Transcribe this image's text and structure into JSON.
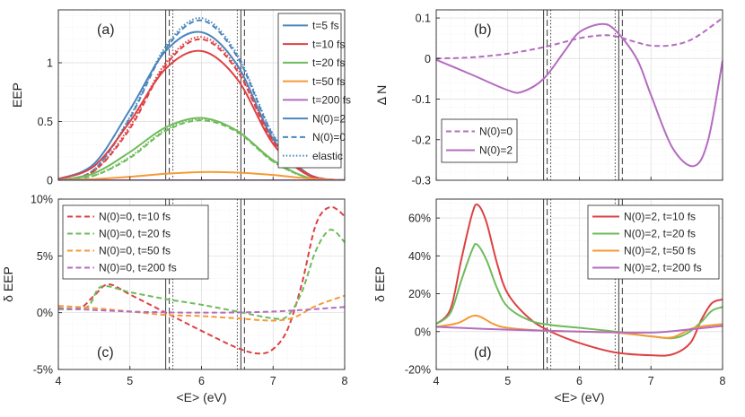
{
  "chart_data": [
    {
      "panel": "(a)",
      "type": "line",
      "xlabel": "",
      "ylabel": "EEP",
      "xlim": [
        4,
        8
      ],
      "ylim": [
        0,
        1.45
      ],
      "xticks": [
        4,
        5,
        6,
        7,
        8
      ],
      "xtick_labels": [
        "",
        "",
        "",
        "",
        ""
      ],
      "yticks": [
        0,
        0.5,
        1
      ],
      "ytick_labels": [
        "0",
        "0.5",
        "1"
      ],
      "legend": [
        "t=5 fs",
        "t=10 fs",
        "t=20 fs",
        "t=50 fs",
        "t=200 fs",
        "N(0)=2",
        "N(0)=0",
        "elastic"
      ],
      "legend_styles": [
        {
          "color": "#4a86bd",
          "dash": "solid"
        },
        {
          "color": "#de4144",
          "dash": "solid"
        },
        {
          "color": "#6ebb5b",
          "dash": "solid"
        },
        {
          "color": "#f59a36",
          "dash": "solid"
        },
        {
          "color": "#b46cc0",
          "dash": "solid"
        },
        {
          "color": "#4a86bd",
          "dash": "solid"
        },
        {
          "color": "#4a86bd",
          "dash": "dashed"
        },
        {
          "color": "#4a86bd",
          "dash": "dotted"
        }
      ],
      "series": [
        {
          "name": "t=5 fs, N(0)=2",
          "color": "#4a86bd",
          "dash": "solid",
          "x": [
            4,
            4.5,
            5,
            5.5,
            6,
            6.5,
            7,
            7.5,
            8
          ],
          "y": [
            0.01,
            0.14,
            0.6,
            1.1,
            1.26,
            0.98,
            0.35,
            0.05,
            0.0
          ]
        },
        {
          "name": "t=5 fs, N(0)=0",
          "color": "#4a86bd",
          "dash": "dashed",
          "x": [
            4,
            4.5,
            5,
            5.5,
            6,
            6.5,
            7,
            7.5,
            8
          ],
          "y": [
            0.0,
            0.09,
            0.53,
            1.12,
            1.36,
            1.05,
            0.38,
            0.05,
            0.0
          ]
        },
        {
          "name": "t=5 fs, elastic",
          "color": "#4a86bd",
          "dash": "dotted",
          "x": [
            4,
            4.5,
            5,
            5.5,
            6,
            6.5,
            7,
            7.5,
            8
          ],
          "y": [
            0.0,
            0.09,
            0.54,
            1.14,
            1.38,
            1.07,
            0.39,
            0.05,
            0.0
          ]
        },
        {
          "name": "t=10 fs, N(0)=2",
          "color": "#de4144",
          "dash": "solid",
          "x": [
            4,
            4.5,
            5,
            5.5,
            6,
            6.5,
            7,
            7.5,
            8
          ],
          "y": [
            0.01,
            0.12,
            0.5,
            0.95,
            1.1,
            0.86,
            0.31,
            0.04,
            0.0
          ]
        },
        {
          "name": "t=10 fs, N(0)=0",
          "color": "#de4144",
          "dash": "dashed",
          "x": [
            4,
            4.5,
            5,
            5.5,
            6,
            6.5,
            7,
            7.5,
            8
          ],
          "y": [
            0.0,
            0.08,
            0.44,
            0.98,
            1.2,
            0.93,
            0.33,
            0.05,
            0.0
          ]
        },
        {
          "name": "t=10 fs, elastic",
          "color": "#de4144",
          "dash": "dotted",
          "x": [
            4,
            4.5,
            5,
            5.5,
            6,
            6.5,
            7,
            7.5,
            8
          ],
          "y": [
            0.0,
            0.08,
            0.46,
            1.0,
            1.22,
            0.95,
            0.34,
            0.05,
            0.0
          ]
        },
        {
          "name": "t=20 fs, N(0)=2",
          "color": "#6ebb5b",
          "dash": "solid",
          "x": [
            4,
            4.5,
            5,
            5.5,
            6,
            6.5,
            7,
            7.5,
            8
          ],
          "y": [
            0.0,
            0.06,
            0.24,
            0.45,
            0.53,
            0.42,
            0.17,
            0.02,
            0.0
          ]
        },
        {
          "name": "t=20 fs, N(0)=0",
          "color": "#6ebb5b",
          "dash": "dashed",
          "x": [
            4,
            4.5,
            5,
            5.5,
            6,
            6.5,
            7,
            7.5,
            8
          ],
          "y": [
            0.0,
            0.04,
            0.19,
            0.42,
            0.51,
            0.41,
            0.16,
            0.02,
            0.0
          ]
        },
        {
          "name": "t=20 fs, elastic",
          "color": "#6ebb5b",
          "dash": "dotted",
          "x": [
            4,
            4.5,
            5,
            5.5,
            6,
            6.5,
            7,
            7.5,
            8
          ],
          "y": [
            0.0,
            0.04,
            0.2,
            0.43,
            0.52,
            0.42,
            0.16,
            0.02,
            0.0
          ]
        },
        {
          "name": "t=50 fs",
          "color": "#f59a36",
          "dash": "solid",
          "x": [
            4,
            4.5,
            5,
            5.5,
            6,
            6.5,
            7,
            7.5,
            8
          ],
          "y": [
            0.0,
            0.01,
            0.03,
            0.055,
            0.07,
            0.065,
            0.045,
            0.015,
            0.0
          ]
        },
        {
          "name": "t=200 fs",
          "color": "#b46cc0",
          "dash": "solid",
          "x": [
            4,
            5,
            6,
            7,
            8
          ],
          "y": [
            0.0,
            0.0,
            0.0,
            0.0,
            0.0
          ]
        }
      ],
      "vlines": [
        {
          "x": 5.5,
          "dash": "solid"
        },
        {
          "x": 5.55,
          "dash": "dashed"
        },
        {
          "x": 5.6,
          "dash": "dotted"
        },
        {
          "x": 6.5,
          "dash": "dotted"
        },
        {
          "x": 6.55,
          "dash": "solid"
        },
        {
          "x": 6.6,
          "dash": "dashed"
        }
      ]
    },
    {
      "panel": "(b)",
      "type": "line",
      "xlabel": "",
      "ylabel": "Δ N",
      "xlim": [
        4,
        8
      ],
      "ylim": [
        -0.3,
        0.12
      ],
      "xticks": [
        4,
        5,
        6,
        7,
        8
      ],
      "xtick_labels": [
        "",
        "",
        "",
        "",
        ""
      ],
      "yticks": [
        -0.3,
        -0.2,
        -0.1,
        0,
        0.1
      ],
      "ytick_labels": [
        "-0.3",
        "-0.2",
        "-0.1",
        "0",
        "0.1"
      ],
      "legend": [
        "N(0)=0",
        "N(0)=2"
      ],
      "legend_styles": [
        {
          "color": "#b46cc0",
          "dash": "dashed"
        },
        {
          "color": "#b46cc0",
          "dash": "solid"
        }
      ],
      "series": [
        {
          "name": "N(0)=0",
          "color": "#b46cc0",
          "dash": "dashed",
          "x": [
            4,
            4.5,
            5,
            5.5,
            6,
            6.3,
            6.5,
            6.8,
            7,
            7.3,
            7.6,
            8
          ],
          "y": [
            0.0,
            0.003,
            0.012,
            0.028,
            0.05,
            0.057,
            0.055,
            0.04,
            0.032,
            0.033,
            0.05,
            0.1
          ]
        },
        {
          "name": "N(0)=2",
          "color": "#b46cc0",
          "dash": "solid",
          "x": [
            4,
            4.5,
            5,
            5.2,
            5.5,
            5.8,
            6,
            6.3,
            6.5,
            6.8,
            7,
            7.3,
            7.6,
            7.8,
            8
          ],
          "y": [
            -0.003,
            -0.04,
            -0.078,
            -0.082,
            -0.05,
            0.02,
            0.065,
            0.085,
            0.07,
            0.0,
            -0.09,
            -0.22,
            -0.265,
            -0.2,
            -0.005
          ]
        }
      ],
      "vlines": [
        {
          "x": 5.5,
          "dash": "solid"
        },
        {
          "x": 5.55,
          "dash": "dashed"
        },
        {
          "x": 5.6,
          "dash": "dotted"
        },
        {
          "x": 6.5,
          "dash": "dotted"
        },
        {
          "x": 6.55,
          "dash": "solid"
        },
        {
          "x": 6.6,
          "dash": "dashed"
        }
      ]
    },
    {
      "panel": "(c)",
      "type": "line",
      "xlabel": "<E> (eV)",
      "ylabel": "δ EEP",
      "xlim": [
        4,
        8
      ],
      "ylim": [
        -5,
        10
      ],
      "xticks": [
        4,
        5,
        6,
        7,
        8
      ],
      "xtick_labels": [
        "4",
        "5",
        "6",
        "7",
        "8"
      ],
      "yticks": [
        -5,
        0,
        5,
        10
      ],
      "ytick_labels": [
        "-5%",
        "0%",
        "5%",
        "10%"
      ],
      "legend": [
        "N(0)=0, t=10 fs",
        "N(0)=0, t=20 fs",
        "N(0)=0, t=50 fs",
        "N(0)=0, t=200 fs"
      ],
      "legend_styles": [
        {
          "color": "#de4144",
          "dash": "dashed"
        },
        {
          "color": "#6ebb5b",
          "dash": "dashed"
        },
        {
          "color": "#f59a36",
          "dash": "dashed"
        },
        {
          "color": "#b46cc0",
          "dash": "dashed"
        }
      ],
      "series": [
        {
          "name": "N(0)=0, t=10 fs",
          "color": "#de4144",
          "dash": "dashed",
          "x": [
            4,
            4.3,
            4.5,
            4.7,
            5,
            5.5,
            6,
            6.5,
            6.8,
            7,
            7.2,
            7.4,
            7.6,
            7.8,
            8
          ],
          "y": [
            0.4,
            0.4,
            1.5,
            2.5,
            1.6,
            0.0,
            -1.6,
            -3.1,
            -3.6,
            -3.2,
            -1.5,
            2.5,
            7.8,
            9.3,
            8.5
          ]
        },
        {
          "name": "N(0)=0, t=20 fs",
          "color": "#6ebb5b",
          "dash": "dashed",
          "x": [
            4,
            4.4,
            4.6,
            5,
            5.5,
            6,
            6.5,
            7,
            7.2,
            7.4,
            7.6,
            7.8,
            8
          ],
          "y": [
            0.3,
            0.5,
            2.3,
            1.8,
            1.2,
            0.7,
            0.1,
            -0.5,
            -0.3,
            1.8,
            5.5,
            7.3,
            6.2
          ]
        },
        {
          "name": "N(0)=0, t=50 fs",
          "color": "#f59a36",
          "dash": "dashed",
          "x": [
            4,
            4.5,
            5,
            5.5,
            6,
            6.5,
            7,
            7.3,
            7.6,
            8
          ],
          "y": [
            0.6,
            0.4,
            0.1,
            -0.2,
            -0.3,
            -0.5,
            -0.7,
            -0.4,
            0.6,
            1.5
          ]
        },
        {
          "name": "N(0)=0, t=200 fs",
          "color": "#b46cc0",
          "dash": "dashed",
          "x": [
            4,
            5,
            6,
            7,
            8
          ],
          "y": [
            0.4,
            0.1,
            0.0,
            0.1,
            0.5
          ]
        }
      ],
      "vlines": [
        {
          "x": 5.5,
          "dash": "solid"
        },
        {
          "x": 5.55,
          "dash": "dashed"
        },
        {
          "x": 5.6,
          "dash": "dotted"
        },
        {
          "x": 6.5,
          "dash": "dotted"
        },
        {
          "x": 6.55,
          "dash": "solid"
        },
        {
          "x": 6.6,
          "dash": "dashed"
        }
      ]
    },
    {
      "panel": "(d)",
      "type": "line",
      "xlabel": "<E> (eV)",
      "ylabel": "δ EEP",
      "xlim": [
        4,
        8
      ],
      "ylim": [
        -20,
        70
      ],
      "xticks": [
        4,
        5,
        6,
        7,
        8
      ],
      "xtick_labels": [
        "4",
        "5",
        "6",
        "7",
        "8"
      ],
      "yticks": [
        -20,
        0,
        20,
        40,
        60
      ],
      "ytick_labels": [
        "-20%",
        "0%",
        "20%",
        "40%",
        "60%"
      ],
      "legend": [
        "N(0)=2, t=10 fs",
        "N(0)=2, t=20 fs",
        "N(0)=2, t=50 fs",
        "N(0)=2, t=200 fs"
      ],
      "legend_styles": [
        {
          "color": "#de4144",
          "dash": "solid"
        },
        {
          "color": "#6ebb5b",
          "dash": "solid"
        },
        {
          "color": "#f59a36",
          "dash": "solid"
        },
        {
          "color": "#b46cc0",
          "dash": "solid"
        }
      ],
      "series": [
        {
          "name": "N(0)=2, t=10 fs",
          "color": "#de4144",
          "dash": "solid",
          "x": [
            4,
            4.2,
            4.35,
            4.5,
            4.58,
            4.7,
            4.85,
            5,
            5.3,
            5.6,
            6,
            6.5,
            7,
            7.3,
            7.55,
            7.7,
            7.85,
            8
          ],
          "y": [
            4,
            12,
            38,
            62,
            67,
            58,
            36,
            20,
            7,
            0,
            -6,
            -11,
            -12.5,
            -12,
            -6,
            6,
            15,
            17
          ]
        },
        {
          "name": "N(0)=2, t=20 fs",
          "color": "#6ebb5b",
          "dash": "solid",
          "x": [
            4,
            4.2,
            4.35,
            4.5,
            4.57,
            4.7,
            4.85,
            5,
            5.3,
            5.6,
            6,
            6.5,
            7,
            7.3,
            7.5,
            7.7,
            7.85,
            8
          ],
          "y": [
            4,
            10,
            27,
            43,
            46,
            38,
            23,
            13,
            6,
            3.5,
            2,
            0,
            -2.5,
            -3.5,
            -1,
            5,
            11,
            13
          ]
        },
        {
          "name": "N(0)=2, t=50 fs",
          "color": "#f59a36",
          "dash": "solid",
          "x": [
            4,
            4.3,
            4.55,
            4.8,
            5,
            5.5,
            6,
            6.5,
            7,
            7.3,
            7.6,
            8
          ],
          "y": [
            2.5,
            4.5,
            8.5,
            4,
            2,
            0.5,
            0,
            -0.5,
            -2.5,
            -3,
            2,
            4
          ]
        },
        {
          "name": "N(0)=2, t=200 fs",
          "color": "#b46cc0",
          "dash": "solid",
          "x": [
            4,
            5,
            6,
            7,
            7.5,
            8
          ],
          "y": [
            2.5,
            1,
            0,
            -0.5,
            1,
            3
          ]
        }
      ],
      "vlines": [
        {
          "x": 5.5,
          "dash": "solid"
        },
        {
          "x": 5.55,
          "dash": "dashed"
        },
        {
          "x": 5.6,
          "dash": "dotted"
        },
        {
          "x": 6.5,
          "dash": "dotted"
        },
        {
          "x": 6.55,
          "dash": "solid"
        },
        {
          "x": 6.6,
          "dash": "dashed"
        }
      ]
    }
  ]
}
